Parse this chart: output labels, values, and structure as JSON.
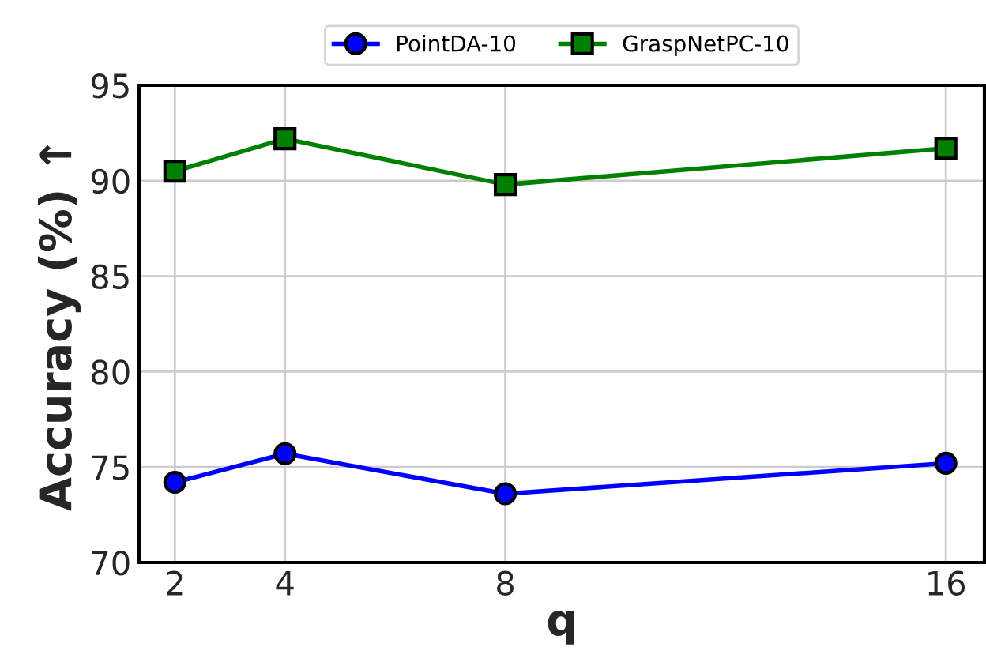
{
  "chart_data": {
    "type": "line",
    "xlabel": "q",
    "ylabel": "Accuracy (%) ↑",
    "x": [
      2,
      4,
      8,
      16
    ],
    "series": [
      {
        "name": "PointDA-10",
        "color": "#0000ff",
        "marker": "circle",
        "values": [
          74.2,
          75.7,
          73.6,
          75.2
        ]
      },
      {
        "name": "GraspNetPC-10",
        "color": "#008000",
        "marker": "square",
        "values": [
          90.5,
          92.2,
          89.8,
          91.7
        ]
      }
    ],
    "xlim": [
      1.35,
      16.7
    ],
    "xticks": [
      2,
      4,
      8,
      16
    ],
    "ylim": [
      70,
      95
    ],
    "yticks": [
      70,
      75,
      80,
      85,
      90,
      95
    ],
    "grid": true,
    "legend": "top",
    "line_style": "solid"
  }
}
